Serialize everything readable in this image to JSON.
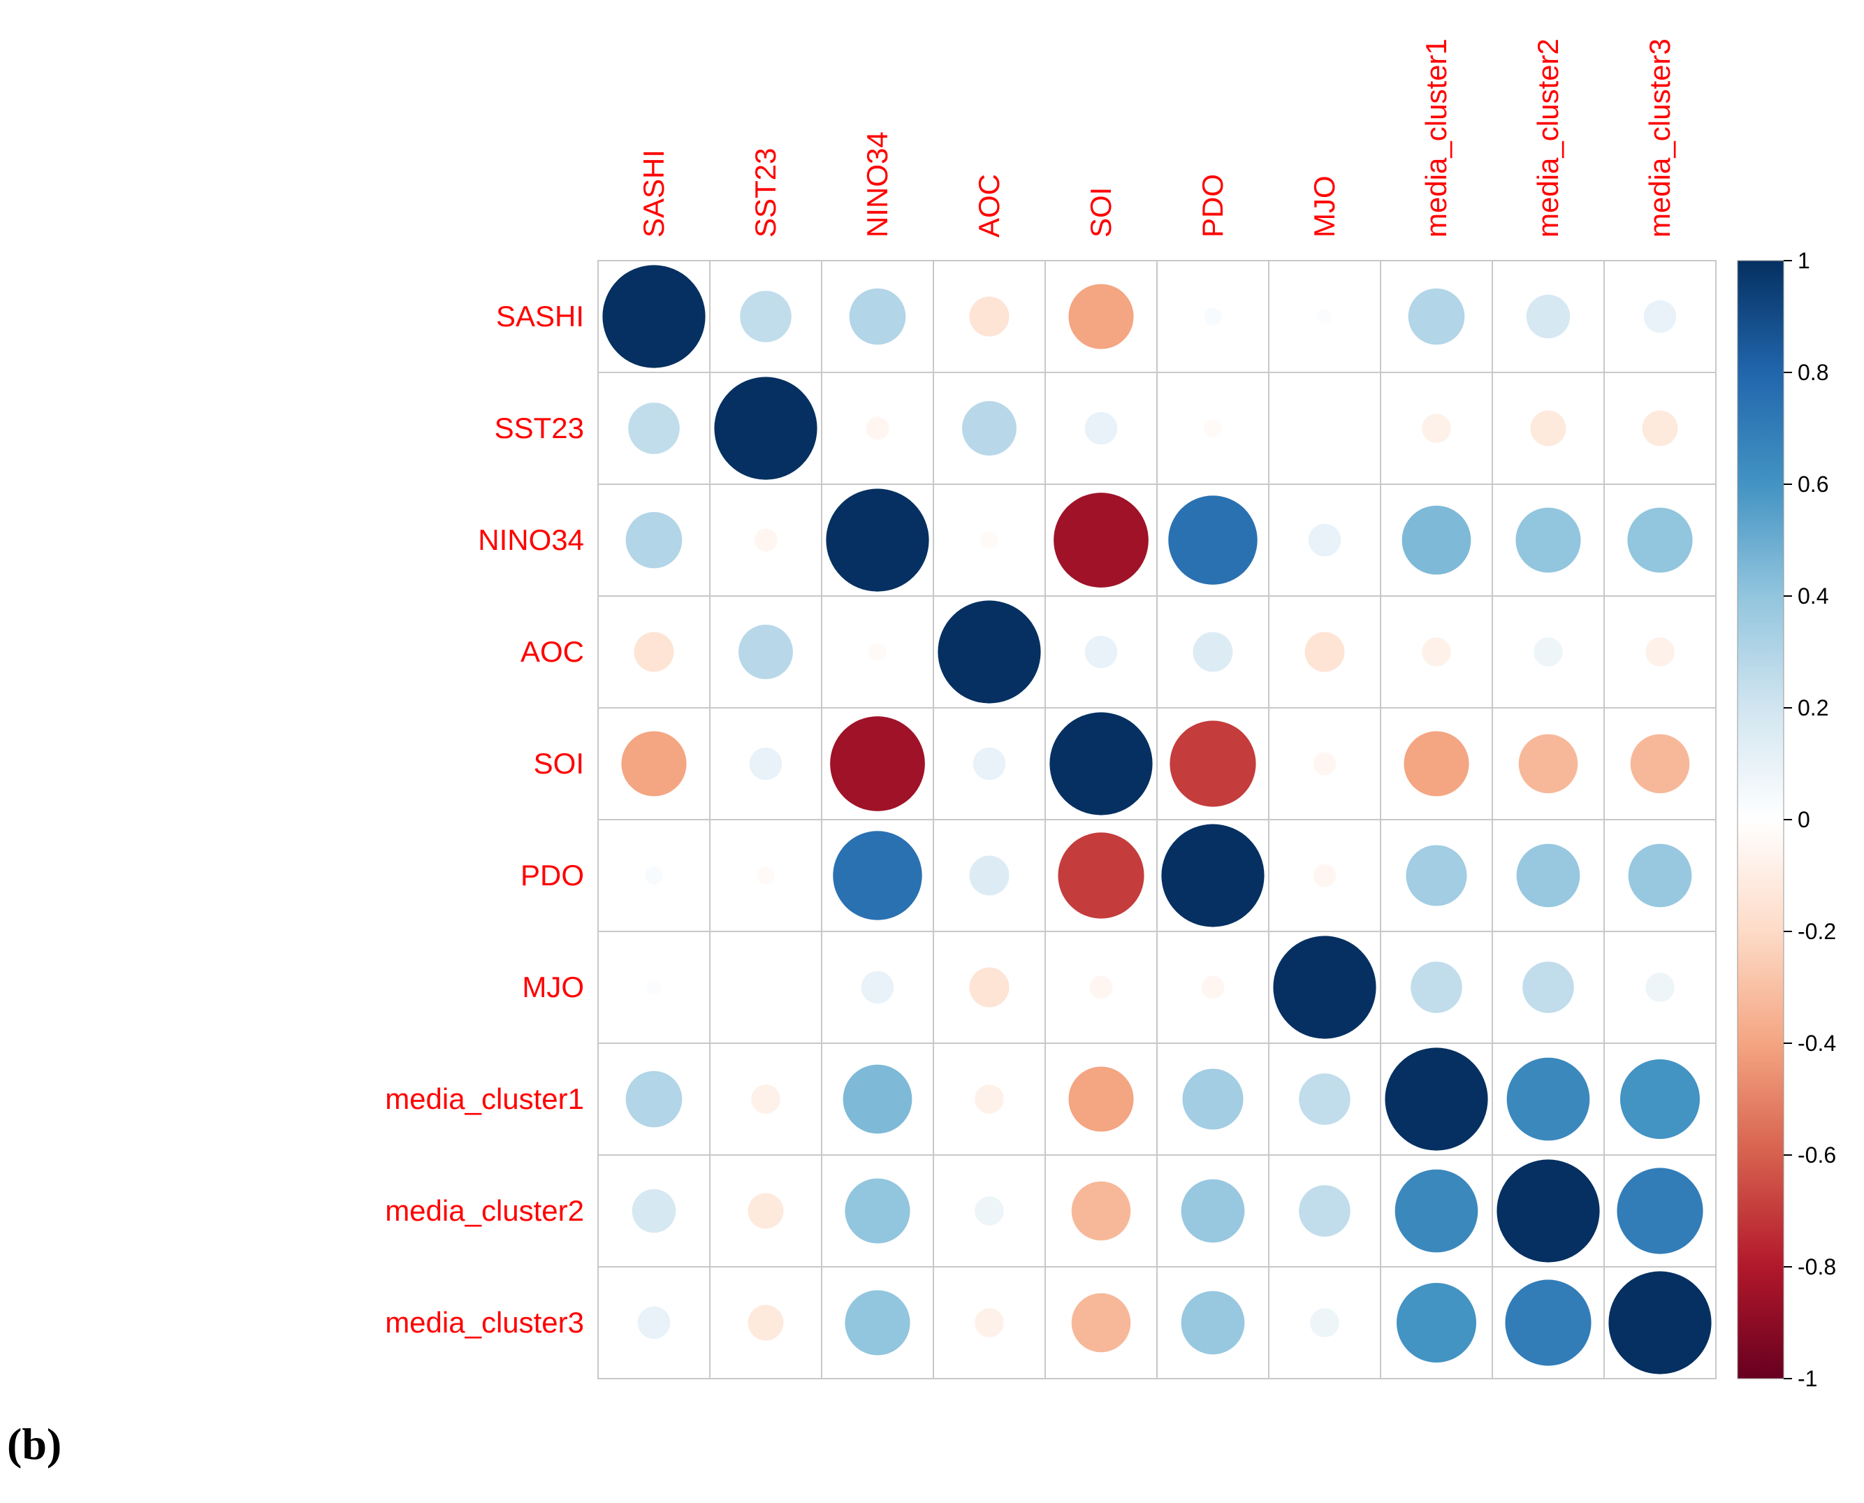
{
  "panel_label": "(b)",
  "chart_data": {
    "type": "heatmap",
    "style": "correlation-circles",
    "variables": [
      "SASHI",
      "SST23",
      "NINO34",
      "AOC",
      "SOI",
      "PDO",
      "MJO",
      "media_cluster1",
      "media_cluster2",
      "media_cluster3"
    ],
    "matrix": [
      [
        1.0,
        0.25,
        0.3,
        -0.15,
        -0.4,
        0.03,
        0.02,
        0.3,
        0.18,
        0.1
      ],
      [
        0.25,
        1.0,
        -0.05,
        0.28,
        0.1,
        -0.03,
        0.0,
        -0.08,
        -0.12,
        -0.12
      ],
      [
        0.3,
        -0.05,
        1.0,
        -0.03,
        -0.85,
        0.75,
        0.1,
        0.45,
        0.4,
        0.4
      ],
      [
        -0.15,
        0.28,
        -0.03,
        1.0,
        0.1,
        0.15,
        -0.15,
        -0.08,
        0.08,
        -0.08
      ],
      [
        -0.4,
        0.1,
        -0.85,
        0.1,
        1.0,
        -0.7,
        -0.05,
        -0.4,
        -0.33,
        -0.33
      ],
      [
        0.03,
        -0.03,
        0.75,
        0.15,
        -0.7,
        1.0,
        -0.05,
        0.35,
        0.38,
        0.38
      ],
      [
        0.02,
        0.0,
        0.1,
        -0.15,
        -0.05,
        -0.05,
        1.0,
        0.25,
        0.25,
        0.08
      ],
      [
        0.3,
        -0.08,
        0.45,
        -0.08,
        -0.4,
        0.35,
        0.25,
        1.0,
        0.65,
        0.6
      ],
      [
        0.18,
        -0.12,
        0.4,
        0.08,
        -0.33,
        0.38,
        0.25,
        0.65,
        1.0,
        0.7
      ],
      [
        0.1,
        -0.12,
        0.4,
        -0.08,
        -0.33,
        0.38,
        0.08,
        0.6,
        0.7,
        1.0
      ]
    ],
    "colorbar": {
      "range": [
        -1,
        1
      ],
      "ticks": [
        "1",
        "0.8",
        "0.6",
        "0.4",
        "0.2",
        "0",
        "-0.2",
        "-0.4",
        "-0.6",
        "-0.8",
        "-1"
      ],
      "colors": [
        "#67001F",
        "#B2182B",
        "#D6604D",
        "#F4A582",
        "#FDDBC7",
        "#FFFFFF",
        "#D1E5F0",
        "#92C5DE",
        "#4393C3",
        "#2166AC",
        "#053061"
      ]
    },
    "label_color": "#FF0000",
    "grid": true
  }
}
